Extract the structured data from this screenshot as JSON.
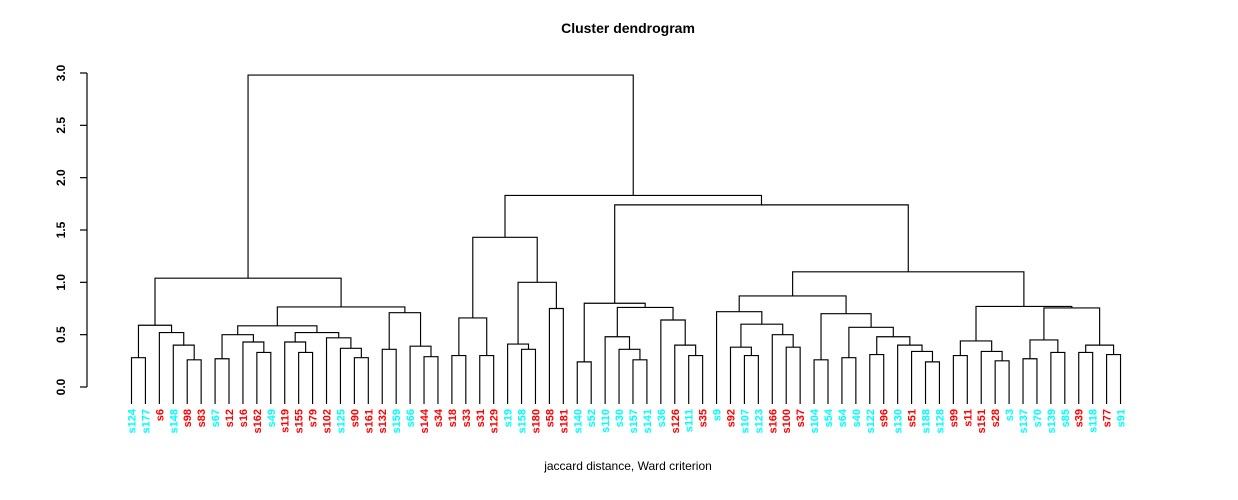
{
  "chart_data": {
    "type": "dendrogram",
    "title": "Cluster dendrogram",
    "xlabel": "jaccard distance, Ward criterion",
    "ylabel": "",
    "ylim": [
      0,
      3
    ],
    "yticks": [
      0,
      0.5,
      1,
      1.5,
      2,
      2.5,
      3
    ],
    "ytick_labels": [
      "0.0",
      "0.5",
      "1.0",
      "1.5",
      "2.0",
      "2.5",
      "3.0"
    ],
    "grid": false,
    "legend_position": "none",
    "line_color": "#000000",
    "leaf_color_legend": {
      "red": "#FF0000",
      "cyan": "#00FFFF"
    },
    "root_height": 2.98,
    "leaves": [
      {
        "label": "s124",
        "color": "cyan"
      },
      {
        "label": "s177",
        "color": "cyan"
      },
      {
        "label": "s6",
        "color": "red"
      },
      {
        "label": "s148",
        "color": "cyan"
      },
      {
        "label": "s98",
        "color": "red"
      },
      {
        "label": "s83",
        "color": "red"
      },
      {
        "label": "s67",
        "color": "cyan"
      },
      {
        "label": "s12",
        "color": "red"
      },
      {
        "label": "s16",
        "color": "red"
      },
      {
        "label": "s162",
        "color": "red"
      },
      {
        "label": "s49",
        "color": "cyan"
      },
      {
        "label": "s119",
        "color": "red"
      },
      {
        "label": "s155",
        "color": "red"
      },
      {
        "label": "s79",
        "color": "red"
      },
      {
        "label": "s102",
        "color": "red"
      },
      {
        "label": "s125",
        "color": "cyan"
      },
      {
        "label": "s90",
        "color": "red"
      },
      {
        "label": "s161",
        "color": "red"
      },
      {
        "label": "s132",
        "color": "red"
      },
      {
        "label": "s159",
        "color": "cyan"
      },
      {
        "label": "s66",
        "color": "cyan"
      },
      {
        "label": "s144",
        "color": "red"
      },
      {
        "label": "s34",
        "color": "red"
      },
      {
        "label": "s18",
        "color": "red"
      },
      {
        "label": "s33",
        "color": "red"
      },
      {
        "label": "s31",
        "color": "red"
      },
      {
        "label": "s129",
        "color": "red"
      },
      {
        "label": "s19",
        "color": "cyan"
      },
      {
        "label": "s158",
        "color": "cyan"
      },
      {
        "label": "s180",
        "color": "red"
      },
      {
        "label": "s58",
        "color": "red"
      },
      {
        "label": "s181",
        "color": "red"
      },
      {
        "label": "s140",
        "color": "cyan"
      },
      {
        "label": "s52",
        "color": "cyan"
      },
      {
        "label": "s110",
        "color": "cyan"
      },
      {
        "label": "s30",
        "color": "cyan"
      },
      {
        "label": "s157",
        "color": "cyan"
      },
      {
        "label": "s141",
        "color": "cyan"
      },
      {
        "label": "s36",
        "color": "cyan"
      },
      {
        "label": "s126",
        "color": "red"
      },
      {
        "label": "s111",
        "color": "cyan"
      },
      {
        "label": "s35",
        "color": "red"
      },
      {
        "label": "s9",
        "color": "cyan"
      },
      {
        "label": "s92",
        "color": "red"
      },
      {
        "label": "s107",
        "color": "cyan"
      },
      {
        "label": "s123",
        "color": "cyan"
      },
      {
        "label": "s166",
        "color": "red"
      },
      {
        "label": "s100",
        "color": "red"
      },
      {
        "label": "s37",
        "color": "red"
      },
      {
        "label": "s104",
        "color": "cyan"
      },
      {
        "label": "s54",
        "color": "cyan"
      },
      {
        "label": "s64",
        "color": "cyan"
      },
      {
        "label": "s40",
        "color": "cyan"
      },
      {
        "label": "s122",
        "color": "cyan"
      },
      {
        "label": "s96",
        "color": "red"
      },
      {
        "label": "s130",
        "color": "cyan"
      },
      {
        "label": "s51",
        "color": "red"
      },
      {
        "label": "s188",
        "color": "cyan"
      },
      {
        "label": "s128",
        "color": "cyan"
      },
      {
        "label": "s99",
        "color": "red"
      },
      {
        "label": "s11",
        "color": "red"
      },
      {
        "label": "s151",
        "color": "red"
      },
      {
        "label": "s28",
        "color": "red"
      },
      {
        "label": "s3",
        "color": "cyan"
      },
      {
        "label": "s137",
        "color": "cyan"
      },
      {
        "label": "s70",
        "color": "cyan"
      },
      {
        "label": "s139",
        "color": "cyan"
      },
      {
        "label": "s85",
        "color": "cyan"
      },
      {
        "label": "s39",
        "color": "red"
      },
      {
        "label": "s118",
        "color": "cyan"
      },
      {
        "label": "s77",
        "color": "red"
      },
      {
        "label": "s91",
        "color": "cyan"
      }
    ],
    "tree": {
      "h": 2.98,
      "c": [
        {
          "h": 1.04,
          "c": [
            {
              "h": 0.59,
              "c": [
                {
                  "h": 0.28,
                  "c": [
                    0,
                    1
                  ]
                },
                {
                  "h": 0.52,
                  "c": [
                    2,
                    {
                      "h": 0.4,
                      "c": [
                        3,
                        {
                          "h": 0.26,
                          "c": [
                            4,
                            5
                          ]
                        }
                      ]
                    }
                  ]
                }
              ]
            },
            {
              "h": 0.765,
              "c": [
                {
                  "h": 0.585,
                  "c": [
                    {
                      "h": 0.5,
                      "c": [
                        {
                          "h": 0.27,
                          "c": [
                            6,
                            7
                          ]
                        },
                        {
                          "h": 0.43,
                          "c": [
                            8,
                            {
                              "h": 0.33,
                              "c": [
                                9,
                                10
                              ]
                            }
                          ]
                        }
                      ]
                    },
                    {
                      "h": 0.52,
                      "c": [
                        {
                          "h": 0.43,
                          "c": [
                            11,
                            {
                              "h": 0.33,
                              "c": [
                                12,
                                13
                              ]
                            }
                          ]
                        },
                        {
                          "h": 0.47,
                          "c": [
                            14,
                            {
                              "h": 0.37,
                              "c": [
                                15,
                                {
                                  "h": 0.28,
                                  "c": [
                                    16,
                                    17
                                  ]
                                }
                              ]
                            }
                          ]
                        }
                      ]
                    }
                  ]
                },
                {
                  "h": 0.71,
                  "c": [
                    {
                      "h": 0.36,
                      "c": [
                        18,
                        19
                      ]
                    },
                    {
                      "h": 0.39,
                      "c": [
                        20,
                        {
                          "h": 0.29,
                          "c": [
                            21,
                            22
                          ]
                        }
                      ]
                    }
                  ]
                }
              ]
            }
          ]
        },
        {
          "h": 1.83,
          "c": [
            {
              "h": 1.43,
              "c": [
                {
                  "h": 0.66,
                  "c": [
                    {
                      "h": 0.3,
                      "c": [
                        23,
                        24
                      ]
                    },
                    {
                      "h": 0.3,
                      "c": [
                        25,
                        26
                      ]
                    }
                  ]
                },
                {
                  "h": 1.0,
                  "c": [
                    {
                      "h": 0.41,
                      "c": [
                        27,
                        {
                          "h": 0.36,
                          "c": [
                            28,
                            29
                          ]
                        }
                      ]
                    },
                    {
                      "h": 0.75,
                      "c": [
                        30,
                        31
                      ]
                    }
                  ]
                }
              ]
            },
            {
              "h": 1.74,
              "c": [
                {
                  "h": 0.8,
                  "c": [
                    {
                      "h": 0.24,
                      "c": [
                        32,
                        33
                      ]
                    },
                    {
                      "h": 0.76,
                      "c": [
                        {
                          "h": 0.48,
                          "c": [
                            34,
                            {
                              "h": 0.36,
                              "c": [
                                35,
                                {
                                  "h": 0.26,
                                  "c": [
                                    36,
                                    37
                                  ]
                                }
                              ]
                            }
                          ]
                        },
                        {
                          "h": 0.64,
                          "c": [
                            38,
                            {
                              "h": 0.4,
                              "c": [
                                39,
                                {
                                  "h": 0.3,
                                  "c": [
                                    40,
                                    41
                                  ]
                                }
                              ]
                            }
                          ]
                        }
                      ]
                    }
                  ]
                },
                {
                  "h": 1.1,
                  "c": [
                    {
                      "h": 0.87,
                      "c": [
                        {
                          "h": 0.72,
                          "c": [
                            42,
                            {
                              "h": 0.6,
                              "c": [
                                {
                                  "h": 0.38,
                                  "c": [
                                    43,
                                    {
                                      "h": 0.3,
                                      "c": [
                                        44,
                                        45
                                      ]
                                    }
                                  ]
                                },
                                {
                                  "h": 0.5,
                                  "c": [
                                    46,
                                    {
                                      "h": 0.38,
                                      "c": [
                                        47,
                                        48
                                      ]
                                    }
                                  ]
                                }
                              ]
                            }
                          ]
                        },
                        {
                          "h": 0.7,
                          "c": [
                            {
                              "h": 0.26,
                              "c": [
                                49,
                                50
                              ]
                            },
                            {
                              "h": 0.57,
                              "c": [
                                {
                                  "h": 0.28,
                                  "c": [
                                    51,
                                    52
                                  ]
                                },
                                {
                                  "h": 0.48,
                                  "c": [
                                    {
                                      "h": 0.31,
                                      "c": [
                                        53,
                                        54
                                      ]
                                    },
                                    {
                                      "h": 0.4,
                                      "c": [
                                        55,
                                        {
                                          "h": 0.34,
                                          "c": [
                                            56,
                                            {
                                              "h": 0.24,
                                              "c": [
                                                57,
                                                58
                                              ]
                                            }
                                          ]
                                        }
                                      ]
                                    }
                                  ]
                                }
                              ]
                            }
                          ]
                        }
                      ]
                    },
                    {
                      "h": 0.77,
                      "c": [
                        {
                          "h": 0.44,
                          "c": [
                            {
                              "h": 0.3,
                              "c": [
                                59,
                                60
                              ]
                            },
                            {
                              "h": 0.34,
                              "c": [
                                61,
                                {
                                  "h": 0.25,
                                  "c": [
                                    62,
                                    63
                                  ]
                                }
                              ]
                            }
                          ]
                        },
                        {
                          "h": 0.755,
                          "c": [
                            {
                              "h": 0.45,
                              "c": [
                                {
                                  "h": 0.27,
                                  "c": [
                                    64,
                                    65
                                  ]
                                },
                                {
                                  "h": 0.33,
                                  "c": [
                                    66,
                                    67
                                  ]
                                }
                              ]
                            },
                            {
                              "h": 0.4,
                              "c": [
                                {
                                  "h": 0.33,
                                  "c": [
                                    68,
                                    69
                                  ]
                                },
                                {
                                  "h": 0.31,
                                  "c": [
                                    70,
                                    71
                                  ]
                                }
                              ]
                            }
                          ]
                        }
                      ]
                    }
                  ]
                }
              ]
            }
          ]
        }
      ]
    }
  }
}
